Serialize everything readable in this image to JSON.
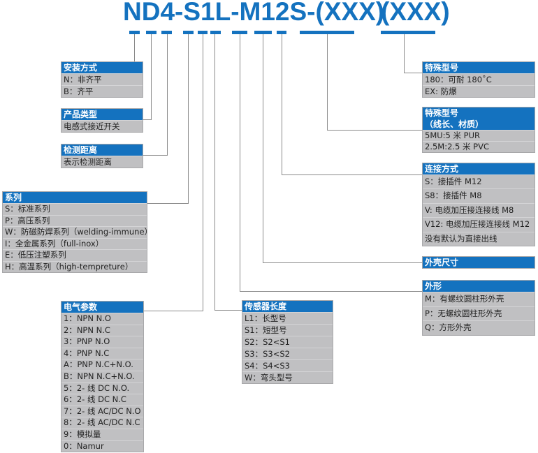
{
  "colors": {
    "accent": "#1472bf",
    "row_bg": "#c0c0c2",
    "line": "#8a8a8a"
  },
  "code": {
    "main": "ND4-S1L-M12S-(XXX)",
    "suffix": "(XXX)"
  },
  "boxes": {
    "mounting": {
      "title": "安装方式",
      "rows": [
        "N：非齐平",
        "B：齐平"
      ]
    },
    "product_type": {
      "title": "产品类型",
      "rows": [
        "电感式接近开关"
      ]
    },
    "sensing_distance": {
      "title": "检测距离",
      "rows": [
        "表示检测距离"
      ]
    },
    "series": {
      "title": "系列",
      "rows": [
        "S：标准系列",
        "P：高压系列",
        "W：防磁防焊系列（welding-immune）",
        "I：全金属系列（full-inox）",
        "E：低压注塑系列",
        "H：高温系列（high-tempreture）"
      ]
    },
    "electrical": {
      "title": "电气参数",
      "rows": [
        "1：NPN N.O",
        "2：NPN N.C",
        "3：PNP N.O",
        "4：PNP N.C",
        "A：PNP N.C+N.O.",
        "B：NPN N.C+N.O.",
        "5：2- 线 DC N.O.",
        "6：2- 线 DC N.C",
        "7：2- 线 AC/DC N.O",
        "8：2- 线 AC/DC N.C",
        "9：模拟量",
        "0：Namur"
      ]
    },
    "sensor_length": {
      "title": "传感器长度",
      "rows": [
        "L1：长型号",
        "S1：短型号",
        "S2：S2<S1",
        "S3：S3<S2",
        "S4：S4<S3",
        "W：弯头型号"
      ]
    },
    "special": {
      "title": "特殊型号",
      "rows": [
        "180：可耐 180˚C",
        "EX: 防爆"
      ]
    },
    "special_cable": {
      "title": "特殊型号",
      "title2": "（线长、材质）",
      "rows": [
        "5MU:5 米 PUR",
        "2.5M:2.5 米 PVC"
      ]
    },
    "connection": {
      "title": "连接方式",
      "rows": [
        "S：接插件 M12",
        "S8：接插件 M8",
        "V: 电缆加压接连接线 M8",
        "V12: 电缆加压接连接线 M12",
        "没有默认为直接出线"
      ]
    },
    "housing_size": {
      "title": "外壳尺寸",
      "rows": []
    },
    "shape": {
      "title": "外形",
      "rows": [
        "M：有螺纹圆柱形外壳",
        "P：无螺纹圆柱形外壳",
        "Q：方形外壳"
      ]
    }
  }
}
